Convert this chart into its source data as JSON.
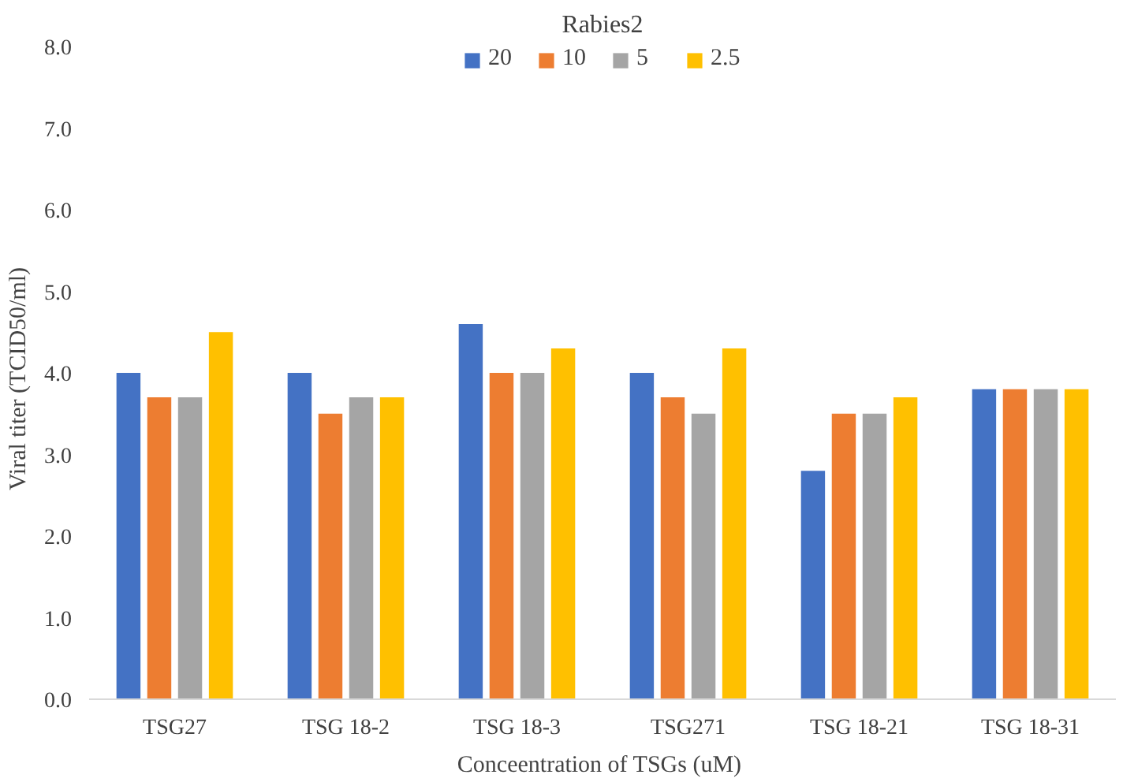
{
  "chart_data": {
    "type": "bar",
    "title": "Rabies2",
    "xlabel": "Conceentration  of TSGs (uM)",
    "ylabel": "Viral  titer  (TCID50/ml)",
    "categories": [
      "TSG27",
      "TSG 18-2",
      "TSG 18-3",
      "TSG271",
      "TSG 18-21",
      "TSG 18-31"
    ],
    "series": [
      {
        "name": "20",
        "color": "#4472c4",
        "values": [
          4.0,
          4.0,
          4.6,
          4.0,
          2.8,
          3.8
        ]
      },
      {
        "name": "10",
        "color": "#ed7d31",
        "values": [
          3.7,
          3.5,
          4.0,
          3.7,
          3.5,
          3.8
        ]
      },
      {
        "name": "5",
        "color": "#a5a5a5",
        "values": [
          3.7,
          3.7,
          4.0,
          3.5,
          3.5,
          3.8
        ]
      },
      {
        "name": "2.5",
        "color": "#ffc000",
        "values": [
          4.5,
          3.7,
          4.3,
          4.3,
          3.7,
          3.8
        ]
      }
    ],
    "ylim": [
      0,
      8
    ],
    "yticks": [
      {
        "value": 0,
        "label": "0.0"
      },
      {
        "value": 1,
        "label": "1.0"
      },
      {
        "value": 2,
        "label": "2.0"
      },
      {
        "value": 3,
        "label": "3.0"
      },
      {
        "value": 4,
        "label": "4.0"
      },
      {
        "value": 5,
        "label": "5.0"
      },
      {
        "value": 6,
        "label": "6.0"
      },
      {
        "value": 7,
        "label": "7.0"
      },
      {
        "value": 8,
        "label": "8.0"
      }
    ],
    "grid": false,
    "legend": "top"
  }
}
